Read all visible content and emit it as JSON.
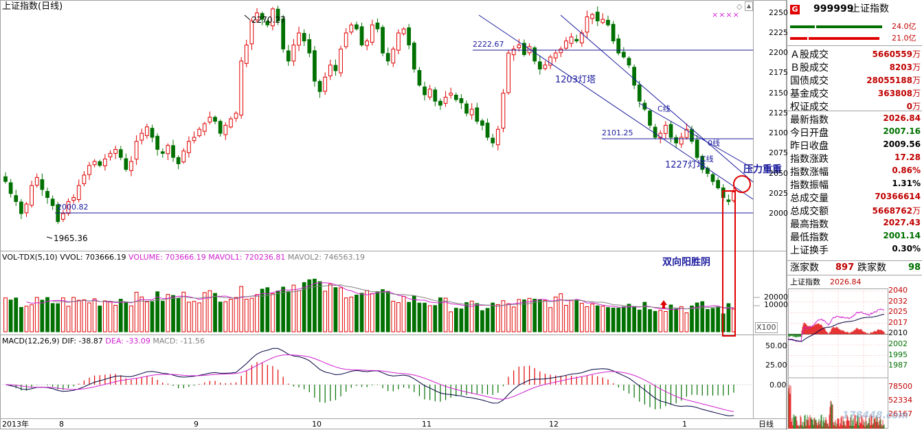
{
  "main": {
    "title": "上证指数(日线)",
    "price_axis": [
      "2250",
      "2225",
      "2200",
      "2175",
      "2150",
      "2125",
      "2100",
      "2075",
      "2050",
      "2025",
      "2000"
    ],
    "annotations": {
      "high": "2270.27",
      "low": "1965.36",
      "level_2222": "2222.67",
      "level_2101": "2101.25",
      "level_2000": "2000.82",
      "lighthouse_1203": "1203灯塔",
      "lighthouse_1227": "1227灯塔",
      "c_line_1": "C线",
      "c_line_2": "C线",
      "zero_line": "0线",
      "pressure": "压力重重",
      "yin_yang": "双向阳胜阴"
    },
    "marker_stars": "××××",
    "diamond": "◇"
  },
  "volume": {
    "prefix": "VOL-TDX(5,10)",
    "vvol": "VVOL: 703666.19",
    "volume": "VOLUME: 703666.19",
    "mavol1": "MAVOL1: 720236.81",
    "mavol2": "MAVOL2: 746563.19",
    "axis": [
      "20000",
      "10000"
    ],
    "unit": "X100"
  },
  "macd": {
    "prefix": "MACD(12,26,9)",
    "dif": "DIF: -38.87",
    "dea": "DEA: -33.09",
    "macd": "MACD: -11.56",
    "axis": [
      "50.00",
      "25.00",
      "0.00"
    ]
  },
  "x_axis": {
    "labels": [
      "2013年",
      "8",
      "9",
      "10",
      "11",
      "12",
      "1"
    ],
    "period": "日线"
  },
  "side": {
    "badge": "G",
    "code": "999999",
    "name": "上证指数",
    "bar_values": [
      "24.0亿",
      "21.0亿"
    ],
    "rows": [
      {
        "label": "Ａ股成交",
        "value": "5660559",
        "unit": "万",
        "color": "#c00000"
      },
      {
        "label": "Ｂ股成交",
        "value": "8203",
        "unit": "万",
        "color": "#c00000"
      },
      {
        "label": "国债成交",
        "value": "28055188",
        "unit": "万",
        "color": "#c00000"
      },
      {
        "label": "基金成交",
        "value": "363808",
        "unit": "万",
        "color": "#c00000"
      },
      {
        "label": "权证成交",
        "value": "0",
        "unit": "万",
        "color": "#c00000"
      },
      {
        "label": "最新指数",
        "value": "2026.84",
        "unit": "",
        "color": "#c00000"
      },
      {
        "label": "今日开盘",
        "value": "2007.16",
        "unit": "",
        "color": "#007000"
      },
      {
        "label": "昨日收盘",
        "value": "2009.56",
        "unit": "",
        "color": "#000000"
      },
      {
        "label": "指数涨跌",
        "value": "17.28",
        "unit": "",
        "color": "#c00000"
      },
      {
        "label": "指数涨幅",
        "value": "0.86%",
        "unit": "",
        "color": "#c00000"
      },
      {
        "label": "指数振幅",
        "value": "1.31%",
        "unit": "",
        "color": "#000000"
      },
      {
        "label": "总成交量",
        "value": "70366614",
        "unit": "",
        "color": "#c00000"
      },
      {
        "label": "总成交额",
        "value": "5668762",
        "unit": "万",
        "color": "#c00000"
      },
      {
        "label": "最高指数",
        "value": "2027.43",
        "unit": "",
        "color": "#c00000"
      },
      {
        "label": "最低指数",
        "value": "2001.14",
        "unit": "",
        "color": "#007000"
      },
      {
        "label": "上证换手",
        "value": "0.30%",
        "unit": "",
        "color": "#000000"
      }
    ],
    "rise_label": "涨家数",
    "rise_value": "897",
    "fall_label": "跌家数",
    "fall_value": "98",
    "mini_title": "上证指数",
    "mini_value": "2026.84",
    "mini_axis": [
      "2040",
      "2032",
      "2025",
      "2017",
      "2010",
      "2002",
      "1995",
      "1987"
    ],
    "mini_vol_axis": [
      "78500",
      "52334",
      "26167"
    ],
    "watermark": "178448.com"
  },
  "chart_data": {
    "type": "candlestick",
    "title": "上证指数(日线)",
    "ylim": [
      1950,
      2275
    ],
    "price_reference_levels": [
      2222.67,
      2101.25,
      2000.82
    ],
    "extremes": {
      "high": 2270.27,
      "low": 1965.36
    },
    "closes": [
      2040,
      2025,
      2015,
      2000,
      2012,
      2035,
      2045,
      2030,
      2020,
      2010,
      1990,
      2000,
      2015,
      2020,
      2035,
      2048,
      2060,
      2065,
      2060,
      2068,
      2075,
      2080,
      2070,
      2055,
      2065,
      2090,
      2100,
      2108,
      2095,
      2080,
      2075,
      2085,
      2070,
      2062,
      2078,
      2090,
      2095,
      2105,
      2112,
      2120,
      2115,
      2100,
      2110,
      2118,
      2125,
      2190,
      2210,
      2240,
      2250,
      2242,
      2235,
      2255,
      2240,
      2205,
      2190,
      2210,
      2225,
      2215,
      2200,
      2165,
      2152,
      2170,
      2185,
      2178,
      2205,
      2225,
      2235,
      2230,
      2210,
      2215,
      2235,
      2230,
      2200,
      2190,
      2205,
      2225,
      2230,
      2210,
      2180,
      2160,
      2148,
      2155,
      2140,
      2135,
      2145,
      2150,
      2142,
      2138,
      2125,
      2130,
      2115,
      2110,
      2095,
      2088,
      2105,
      2150,
      2200,
      2205,
      2210,
      2198,
      2208,
      2190,
      2180,
      2185,
      2195,
      2200,
      2205,
      2215,
      2220,
      2215,
      2225,
      2245,
      2248,
      2240,
      2242,
      2235,
      2215,
      2200,
      2195,
      2185,
      2160,
      2140,
      2130,
      2110,
      2095,
      2100,
      2110,
      2095,
      2088,
      2095,
      2105,
      2090,
      2070,
      2055,
      2050,
      2040,
      2032,
      2020,
      2015,
      2027
    ],
    "volume": {
      "axis_ticks": [
        20000,
        10000
      ],
      "unit": "X100",
      "last_volume": 703666.19,
      "mavol1": 720236.81,
      "mavol2": 746563.19
    },
    "macd": {
      "params": [
        12,
        26,
        9
      ],
      "axis_ticks": [
        50.0,
        25.0,
        0.0
      ],
      "dif": -38.87,
      "dea": -33.09,
      "macd": -11.56
    },
    "x_labels": [
      "2013年",
      "8",
      "9",
      "10",
      "11",
      "12",
      "1"
    ]
  }
}
